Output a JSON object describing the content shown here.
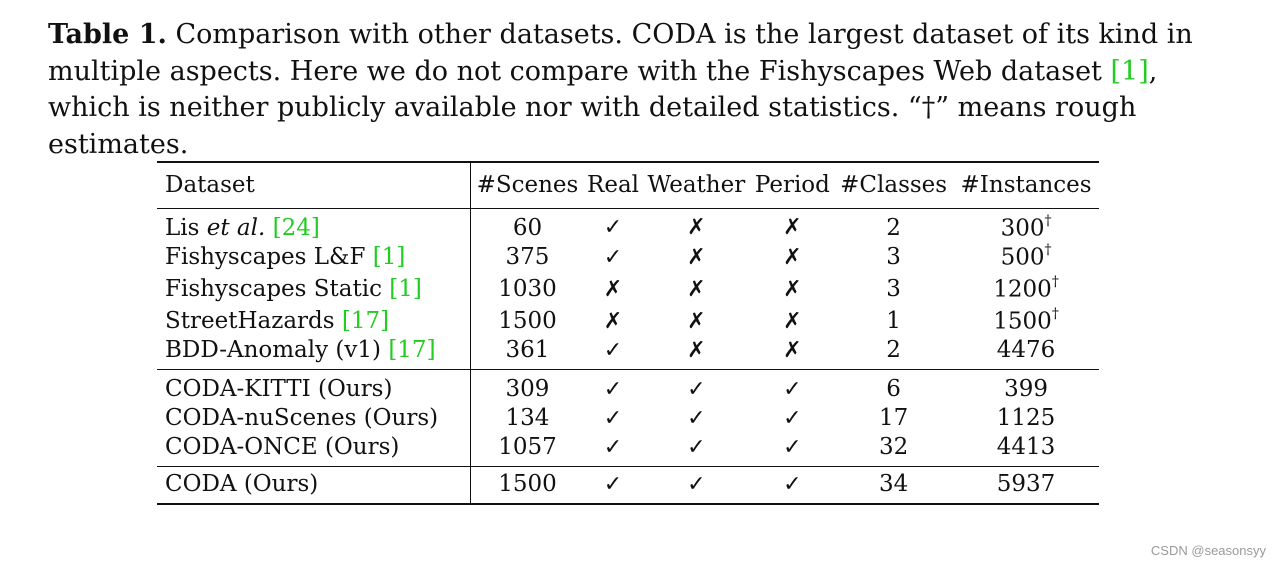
{
  "caption": {
    "label": "Table 1.",
    "part1": " Comparison with other datasets. CODA is the largest dataset of its kind in multiple aspects. Here we do not compare with the Fishyscapes Web dataset ",
    "ref": "[1]",
    "part2": ", which is neither publicly available nor with detailed statistics. “†” means rough estimates."
  },
  "table": {
    "headers": [
      "Dataset",
      "#Scenes",
      "Real",
      "Weather",
      "Period",
      "#Classes",
      "#Instances"
    ],
    "check": "✓",
    "cross": "✗",
    "dagger": "†",
    "groups": [
      {
        "rows": [
          {
            "name": "Lis ",
            "name_em": "et al.",
            "ref": "[24]",
            "scenes": "60",
            "real": "✓",
            "weather": "✗",
            "period": "✗",
            "classes": "2",
            "instances": "300",
            "instances_sup": "†"
          },
          {
            "name": "Fishyscapes L&F ",
            "ref": "[1]",
            "scenes": "375",
            "real": "✓",
            "weather": "✗",
            "period": "✗",
            "classes": "3",
            "instances": "500",
            "instances_sup": "†"
          },
          {
            "name": "Fishyscapes Static ",
            "ref": "[1]",
            "scenes": "1030",
            "real": "✗",
            "weather": "✗",
            "period": "✗",
            "classes": "3",
            "instances": "1200",
            "instances_sup": "†"
          },
          {
            "name": "StreetHazards ",
            "ref": "[17]",
            "scenes": "1500",
            "real": "✗",
            "weather": "✗",
            "period": "✗",
            "classes": "1",
            "instances": "1500",
            "instances_sup": "†"
          },
          {
            "name": "BDD-Anomaly (v1) ",
            "ref": "[17]",
            "scenes": "361",
            "real": "✓",
            "weather": "✗",
            "period": "✗",
            "classes": "2",
            "instances": "4476"
          }
        ]
      },
      {
        "rows": [
          {
            "name": "CODA-KITTI (Ours)",
            "scenes": "309",
            "real": "✓",
            "weather": "✓",
            "period": "✓",
            "classes": "6",
            "instances": "399"
          },
          {
            "name": "CODA-nuScenes (Ours)",
            "scenes": "134",
            "real": "✓",
            "weather": "✓",
            "period": "✓",
            "classes": "17",
            "instances": "1125"
          },
          {
            "name": "CODA-ONCE (Ours)",
            "scenes": "1057",
            "real": "✓",
            "weather": "✓",
            "period": "✓",
            "classes": "32",
            "instances": "4413"
          }
        ]
      },
      {
        "rows": [
          {
            "name": "CODA (Ours)",
            "scenes": "1500",
            "real": "✓",
            "weather": "✓",
            "period": "✓",
            "classes": "34",
            "instances": "5937"
          }
        ]
      }
    ]
  },
  "watermark": "CSDN @seasonsyy",
  "colors": {
    "ref": "#22cc22",
    "text": "#111111",
    "watermark": "#9a9a9a"
  }
}
